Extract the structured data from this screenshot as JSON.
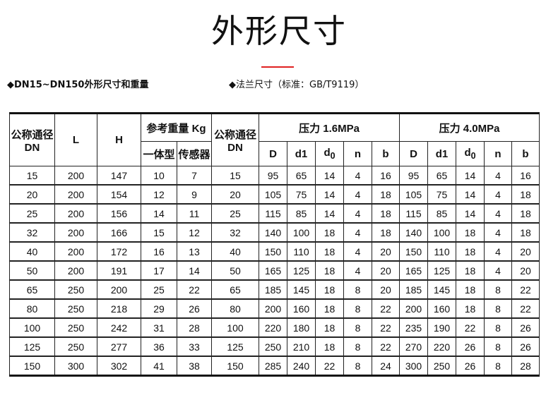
{
  "title": "外形尺寸",
  "accent_color": "#e02020",
  "left_heading": "◆DN15~DN150外形尺寸和重量",
  "right_heading": "◆法兰尺寸（标准：GB/T9119）",
  "headers": {
    "dn": "公称通径DN",
    "L": "L",
    "H": "H",
    "weight": "参考重量 Kg",
    "integral": "一体型",
    "sensor": "传感器",
    "dn2": "公称通径DN",
    "p16": "压力 1.6MPa",
    "p40": "压力 4.0MPa",
    "sub": [
      "D",
      "d1",
      "d0",
      "n",
      "b",
      "D",
      "d1",
      "d0",
      "n",
      "b"
    ]
  },
  "rows": [
    [
      "15",
      "200",
      "147",
      "10",
      "7",
      "15",
      "95",
      "65",
      "14",
      "4",
      "16",
      "95",
      "65",
      "14",
      "4",
      "16"
    ],
    [
      "20",
      "200",
      "154",
      "12",
      "9",
      "20",
      "105",
      "75",
      "14",
      "4",
      "18",
      "105",
      "75",
      "14",
      "4",
      "18"
    ],
    [
      "25",
      "200",
      "156",
      "14",
      "11",
      "25",
      "115",
      "85",
      "14",
      "4",
      "18",
      "115",
      "85",
      "14",
      "4",
      "18"
    ],
    [
      "32",
      "200",
      "166",
      "15",
      "12",
      "32",
      "140",
      "100",
      "18",
      "4",
      "18",
      "140",
      "100",
      "18",
      "4",
      "18"
    ],
    [
      "40",
      "200",
      "172",
      "16",
      "13",
      "40",
      "150",
      "110",
      "18",
      "4",
      "20",
      "150",
      "110",
      "18",
      "4",
      "20"
    ],
    [
      "50",
      "200",
      "191",
      "17",
      "14",
      "50",
      "165",
      "125",
      "18",
      "4",
      "20",
      "165",
      "125",
      "18",
      "4",
      "20"
    ],
    [
      "65",
      "250",
      "200",
      "25",
      "22",
      "65",
      "185",
      "145",
      "18",
      "8",
      "20",
      "185",
      "145",
      "18",
      "8",
      "22"
    ],
    [
      "80",
      "250",
      "218",
      "29",
      "26",
      "80",
      "200",
      "160",
      "18",
      "8",
      "22",
      "200",
      "160",
      "18",
      "8",
      "22"
    ],
    [
      "100",
      "250",
      "242",
      "31",
      "28",
      "100",
      "220",
      "180",
      "18",
      "8",
      "22",
      "235",
      "190",
      "22",
      "8",
      "26"
    ],
    [
      "125",
      "250",
      "277",
      "36",
      "33",
      "125",
      "250",
      "210",
      "18",
      "8",
      "22",
      "270",
      "220",
      "26",
      "8",
      "26"
    ],
    [
      "150",
      "300",
      "302",
      "41",
      "38",
      "150",
      "285",
      "240",
      "22",
      "8",
      "24",
      "300",
      "250",
      "26",
      "8",
      "28"
    ]
  ]
}
